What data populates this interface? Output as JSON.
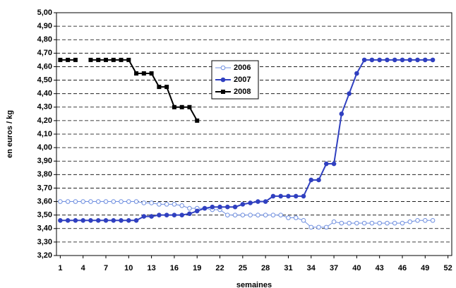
{
  "chart_data": {
    "type": "line",
    "x_label": "semaines",
    "y_label": "en euros / kg",
    "x": [
      1,
      2,
      3,
      4,
      5,
      6,
      7,
      8,
      9,
      10,
      11,
      12,
      13,
      14,
      15,
      16,
      17,
      18,
      19,
      20,
      21,
      22,
      23,
      24,
      25,
      26,
      27,
      28,
      29,
      30,
      31,
      32,
      33,
      34,
      35,
      36,
      37,
      38,
      39,
      40,
      41,
      42,
      43,
      44,
      45,
      46,
      47,
      48,
      49,
      50
    ],
    "series": [
      {
        "name": "2006",
        "color": "#6f8fe0",
        "marker": "open-circle",
        "values": [
          3.6,
          3.6,
          3.6,
          3.6,
          3.6,
          3.6,
          3.6,
          3.6,
          3.6,
          3.6,
          3.6,
          3.59,
          3.59,
          3.58,
          3.58,
          3.58,
          3.57,
          3.55,
          3.55,
          3.55,
          3.54,
          3.54,
          3.5,
          3.5,
          3.5,
          3.5,
          3.5,
          3.5,
          3.5,
          3.5,
          3.48,
          3.48,
          3.46,
          3.41,
          3.41,
          3.41,
          3.45,
          3.44,
          3.44,
          3.44,
          3.44,
          3.44,
          3.44,
          3.44,
          3.44,
          3.44,
          3.45,
          3.46,
          3.46,
          3.46
        ]
      },
      {
        "name": "2007",
        "color": "#3040c0",
        "marker": "circle",
        "values": [
          3.46,
          3.46,
          3.46,
          3.46,
          3.46,
          3.46,
          3.46,
          3.46,
          3.46,
          3.46,
          3.46,
          3.49,
          3.49,
          3.5,
          3.5,
          3.5,
          3.5,
          3.51,
          3.53,
          3.55,
          3.56,
          3.56,
          3.56,
          3.56,
          3.58,
          3.59,
          3.6,
          3.6,
          3.64,
          3.64,
          3.64,
          3.64,
          3.64,
          3.76,
          3.76,
          3.88,
          3.88,
          4.25,
          4.4,
          4.55,
          4.65,
          4.65,
          4.65,
          4.65,
          4.65,
          4.65,
          4.65,
          4.65,
          4.65,
          4.65
        ]
      },
      {
        "name": "2008",
        "color": "#000000",
        "marker": "square",
        "values": [
          4.65,
          4.65,
          4.65,
          null,
          4.65,
          4.65,
          4.65,
          4.65,
          4.65,
          4.65,
          4.55,
          4.55,
          4.55,
          4.45,
          4.45,
          4.3,
          4.3,
          4.3,
          4.2,
          null,
          null,
          null,
          null,
          null,
          null,
          null,
          null,
          null,
          null,
          null,
          null,
          null,
          null,
          null,
          null,
          null,
          null,
          null,
          null,
          null,
          null,
          null,
          null,
          null,
          null,
          null,
          null,
          null,
          null,
          null
        ]
      }
    ],
    "xlim": [
      0.5,
      52.5
    ],
    "xticks": [
      1,
      4,
      7,
      10,
      13,
      16,
      19,
      22,
      25,
      28,
      31,
      34,
      37,
      40,
      43,
      46,
      49,
      52
    ],
    "ylim": [
      3.2,
      5.0
    ],
    "yticks": [
      {
        "value": 3.2,
        "label": "3,20"
      },
      {
        "value": 3.3,
        "label": "3,30"
      },
      {
        "value": 3.4,
        "label": "3,40"
      },
      {
        "value": 3.5,
        "label": "3,50"
      },
      {
        "value": 3.6,
        "label": "3,60"
      },
      {
        "value": 3.7,
        "label": "3,70"
      },
      {
        "value": 3.8,
        "label": "3,80"
      },
      {
        "value": 3.9,
        "label": "3,90"
      },
      {
        "value": 4.0,
        "label": "4,00"
      },
      {
        "value": 4.1,
        "label": "4,10"
      },
      {
        "value": 4.2,
        "label": "4,20"
      },
      {
        "value": 4.3,
        "label": "4,30"
      },
      {
        "value": 4.4,
        "label": "4,40"
      },
      {
        "value": 4.5,
        "label": "4,50"
      },
      {
        "value": 4.6,
        "label": "4,60"
      },
      {
        "value": 4.7,
        "label": "4,70"
      },
      {
        "value": 4.8,
        "label": "4,80"
      },
      {
        "value": 4.9,
        "label": "4,90"
      },
      {
        "value": 5.0,
        "label": "5,00"
      }
    ],
    "grid": true
  }
}
